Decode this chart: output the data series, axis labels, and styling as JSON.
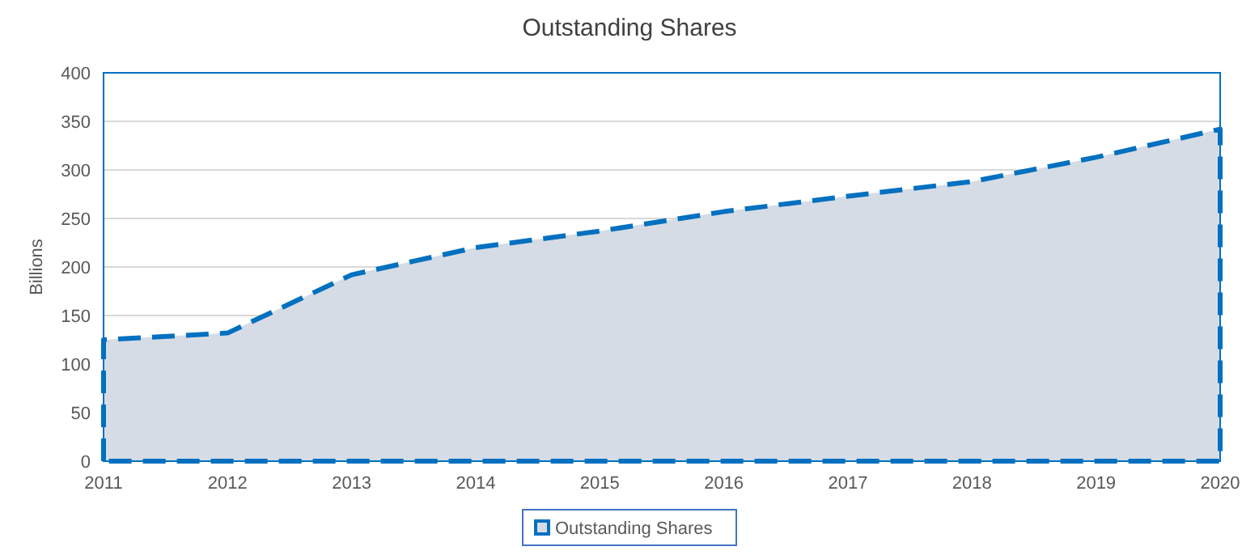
{
  "chart_data": {
    "type": "area",
    "title": "Outstanding Shares",
    "ylabel": "Billions",
    "x": [
      2011,
      2012,
      2013,
      2014,
      2015,
      2016,
      2017,
      2018,
      2019,
      2020
    ],
    "series": [
      {
        "name": "Outstanding Shares",
        "color": "#d6dce5",
        "values": [
          125,
          132,
          192,
          220,
          237,
          257,
          273,
          288,
          313,
          342
        ]
      }
    ],
    "xlim": [
      2011,
      2020
    ],
    "xticks": [
      2011,
      2012,
      2013,
      2014,
      2015,
      2016,
      2017,
      2018,
      2019,
      2020
    ],
    "ylim": [
      0,
      400
    ],
    "yticks": [
      0,
      50,
      100,
      150,
      200,
      250,
      300,
      350,
      400
    ],
    "grid": "y",
    "legend": "bottom",
    "line_style": "dashed"
  }
}
